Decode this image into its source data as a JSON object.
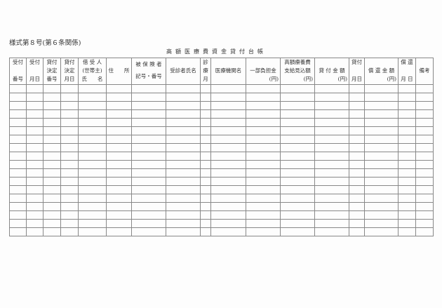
{
  "form_number": "様式第８号(第６条関係)",
  "title": "高額医療費資金貸付台帳",
  "headers": {
    "c1": [
      "受付",
      "番号"
    ],
    "c2": [
      "受付",
      "月日"
    ],
    "c3": [
      "貸付",
      "決定",
      "番号"
    ],
    "c4": [
      "貸付",
      "決定",
      "月日"
    ],
    "c5": [
      "借 受 人",
      "(世帯主)",
      "氏　　名"
    ],
    "c6": "住　　所",
    "c7": [
      "被 保 険 者",
      "記号・番号"
    ],
    "c8": "受診者氏名",
    "c9": [
      "診",
      "療",
      "月"
    ],
    "c10": "医療機関名",
    "c11": [
      "一部負担金",
      "(円)"
    ],
    "c12": [
      "高額療養費",
      "支給見込額",
      "(円)"
    ],
    "c13": [
      "貸 付 金 額",
      "(円)"
    ],
    "c14": [
      "貸付",
      "月日"
    ],
    "c15": [
      "償 還 金 額",
      "(円)"
    ],
    "c16": [
      "償 還",
      "月 日"
    ],
    "c17": "備考"
  },
  "rows": 18
}
